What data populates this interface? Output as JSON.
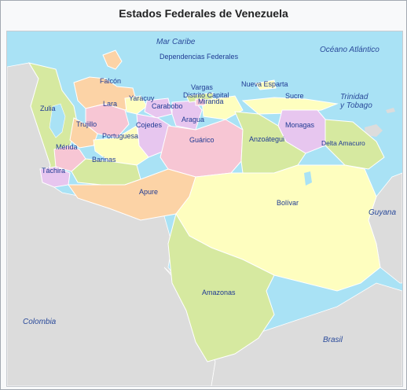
{
  "title": "Estados Federales de Venezuela",
  "colors": {
    "sea": "#a9e2f5",
    "land": "#dcdcdc",
    "green": "#d6e9a0",
    "pink": "#f7c6d4",
    "orange": "#fcd3a6",
    "purple": "#e7c6ef",
    "yellow": "#fefebf",
    "border": "#ffffff",
    "label": "#1f3a93"
  },
  "seas": {
    "caribe": "Mar Caribe",
    "atlantico": "Océano Atlántico"
  },
  "countries": {
    "colombia": "Colombia",
    "brasil": "Brasil",
    "guyana": "Guyana",
    "trinidad_line1": "Trinidad",
    "trinidad_line2": "y Tobago"
  },
  "states": {
    "dependencias": "Dependencias Federales",
    "falcon": "Falcón",
    "zulia": "Zulia",
    "lara": "Lara",
    "yaracuy": "Yaracuy",
    "carabobo": "Carabobo",
    "vargas": "Vargas",
    "distrito": "Distrito Capital",
    "miranda": "Miranda",
    "nueva_esparta": "Nueva Esparta",
    "sucre": "Sucre",
    "trujillo": "Trujillo",
    "cojedes": "Cojedes",
    "aragua": "Aragua",
    "portuguesa": "Portuguesa",
    "guarico": "Guárico",
    "anzoategui": "Anzoátegui",
    "monagas": "Monagas",
    "delta": "Delta Amacuro",
    "merida": "Mérida",
    "tachira": "Táchira",
    "barinas": "Barinas",
    "apure": "Apure",
    "bolivar": "Bolívar",
    "amazonas": "Amazonas"
  }
}
